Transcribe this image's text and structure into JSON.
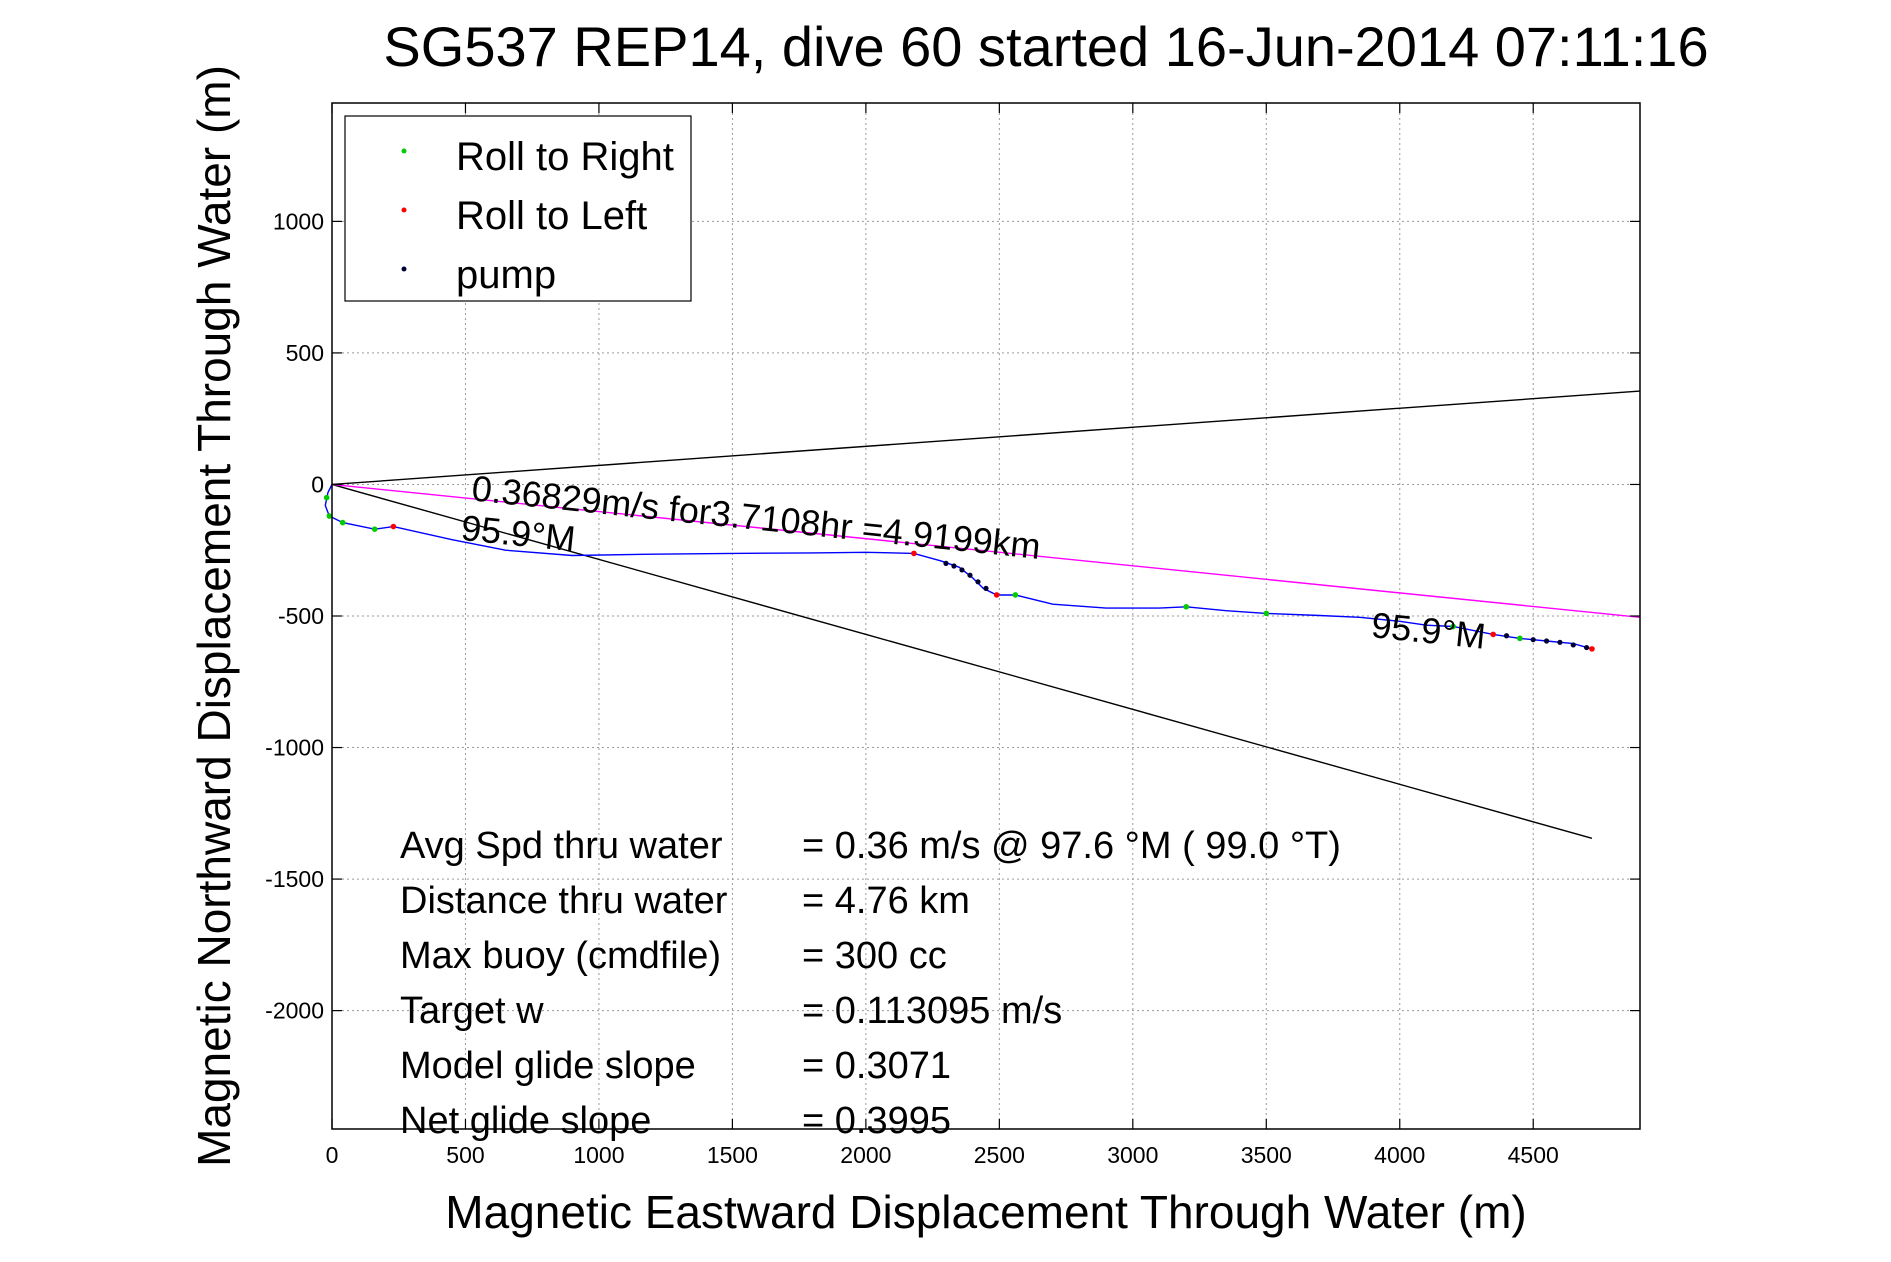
{
  "chart_data": {
    "type": "line",
    "title": "SG537 REP14, dive 60 started 16-Jun-2014 07:11:16",
    "xlabel": "Magnetic Eastward Displacement Through Water (m)",
    "ylabel": "Magnetic Northward Displacement Through Water (m)",
    "xlim": [
      0,
      4900
    ],
    "ylim": [
      -2450,
      1450
    ],
    "xticks": [
      0,
      500,
      1000,
      1500,
      2000,
      2500,
      3000,
      3500,
      4000,
      4500
    ],
    "yticks": [
      1000,
      500,
      0,
      -500,
      -1000,
      -1500,
      -2000
    ],
    "grid": true,
    "legend_position": "top-left",
    "legend": [
      {
        "name": "Roll to Right",
        "color": "#00cc00"
      },
      {
        "name": "Roll to Left",
        "color": "#ff0000"
      },
      {
        "name": "pump",
        "color": "#000033"
      }
    ],
    "track": {
      "color": "#0000ff",
      "x": [
        0,
        -15,
        -25,
        -10,
        40,
        160,
        230,
        450,
        650,
        900,
        1200,
        1500,
        1800,
        2000,
        2180,
        2280,
        2350,
        2400,
        2440,
        2490,
        2560,
        2700,
        2900,
        3100,
        3200,
        3350,
        3500,
        3700,
        3850,
        4000,
        4100,
        4200,
        4350,
        4450,
        4550,
        4650,
        4720
      ],
      "y": [
        0,
        -30,
        -80,
        -120,
        -145,
        -170,
        -160,
        -210,
        -250,
        -270,
        -265,
        -262,
        -260,
        -258,
        -262,
        -290,
        -315,
        -355,
        -395,
        -420,
        -420,
        -455,
        -470,
        -470,
        -465,
        -480,
        -490,
        -498,
        -505,
        -520,
        -535,
        -540,
        -570,
        -585,
        -595,
        -605,
        -625
      ]
    },
    "roll_right": {
      "x": [
        -20,
        -10,
        40,
        160,
        2560,
        3200,
        3500,
        4200,
        4450
      ],
      "y": [
        -50,
        -120,
        -145,
        -170,
        -420,
        -465,
        -490,
        -540,
        -585
      ]
    },
    "roll_left": {
      "x": [
        230,
        2180,
        2490,
        4350,
        4720
      ],
      "y": [
        -160,
        -262,
        -420,
        -570,
        -625
      ]
    },
    "pump": {
      "x": [
        2300,
        2330,
        2360,
        2390,
        2420,
        2450,
        4400,
        4450,
        4500,
        4550,
        4600,
        4650,
        4700
      ],
      "y": [
        -300,
        -310,
        -325,
        -345,
        -370,
        -395,
        -575,
        -585,
        -590,
        -595,
        -600,
        -610,
        -620
      ]
    },
    "reference_lines": [
      {
        "color": "#000000",
        "x": [
          0,
          4900
        ],
        "y": [
          0,
          355
        ]
      },
      {
        "color": "#000000",
        "x": [
          0,
          4720
        ],
        "y": [
          0,
          -1345
        ]
      },
      {
        "color": "#ff00ff",
        "x": [
          0,
          4900
        ],
        "y": [
          0,
          -505
        ]
      }
    ],
    "annotations": [
      {
        "text": "0.36829m/s for3.7108hr =4.9199km",
        "x": 520,
        "y": -60,
        "rotation": 5.9
      },
      {
        "text": "95.9°M",
        "x": 480,
        "y": -210,
        "rotation": 5.9
      },
      {
        "text": "95.9°M",
        "x": 3890,
        "y": -580,
        "rotation": 5.9
      }
    ],
    "stats": [
      {
        "label": "Avg Spd thru water",
        "value": "=  0.36 m/s @  97.6 °M ( 99.0 °T)"
      },
      {
        "label": "Distance thru water",
        "value": "=  4.76 km"
      },
      {
        "label": "Max buoy (cmdfile)",
        "value": "= 300 cc"
      },
      {
        "label": "Target w",
        "value": "= 0.113095 m/s"
      },
      {
        "label": "Model glide slope",
        "value": "= 0.3071"
      },
      {
        "label": "Net glide slope",
        "value": "= 0.3995"
      }
    ]
  }
}
